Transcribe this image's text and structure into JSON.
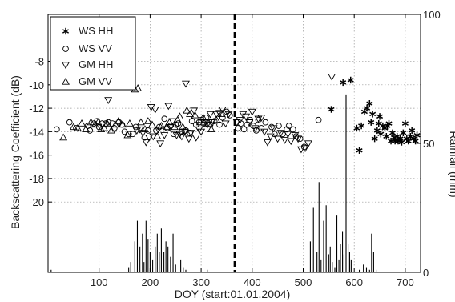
{
  "chart_data": {
    "type": "scatter",
    "xlabel": "DOY (start:01.01.2004)",
    "ylabel": "Backscattering Coefficient (dB)",
    "y2label": "Rainfall (mm)",
    "xlim": [
      0,
      730
    ],
    "ylim": [
      -26,
      -4
    ],
    "y2lim": [
      0,
      100
    ],
    "x_ticks": [
      100,
      200,
      300,
      400,
      500,
      600,
      700
    ],
    "y_ticks": [
      -20,
      -18,
      -16,
      -14,
      -12,
      -10,
      -8
    ],
    "y2_ticks": [
      0,
      50,
      100
    ],
    "grid": true,
    "legend_position": "top-left",
    "event_line_x": 366,
    "series": [
      {
        "name": "WS HH",
        "marker": "star",
        "points": [
          [
            555,
            -12.1
          ],
          [
            578,
            -9.8
          ],
          [
            593,
            -9.6
          ],
          [
            605,
            -13.7
          ],
          [
            610,
            -15.6
          ],
          [
            614,
            -13.5
          ],
          [
            620,
            -12.3
          ],
          [
            625,
            -12.0
          ],
          [
            630,
            -11.6
          ],
          [
            633,
            -13.2
          ],
          [
            636,
            -12.5
          ],
          [
            640,
            -14.6
          ],
          [
            645,
            -13.9
          ],
          [
            648,
            -13.3
          ],
          [
            650,
            -12.7
          ],
          [
            652,
            -14.2
          ],
          [
            656,
            -13.5
          ],
          [
            660,
            -13.7
          ],
          [
            663,
            -14.4
          ],
          [
            665,
            -13.5
          ],
          [
            668,
            -13.3
          ],
          [
            672,
            -14.8
          ],
          [
            675,
            -14.1
          ],
          [
            678,
            -14.5
          ],
          [
            680,
            -14.8
          ],
          [
            684,
            -14.4
          ],
          [
            686,
            -14.8
          ],
          [
            690,
            -14.6
          ],
          [
            693,
            -14.9
          ],
          [
            696,
            -14.1
          ],
          [
            700,
            -13.3
          ],
          [
            703,
            -14.6
          ],
          [
            706,
            -14.8
          ],
          [
            710,
            -14.4
          ],
          [
            713,
            -13.9
          ],
          [
            716,
            -14.6
          ],
          [
            720,
            -14.8
          ],
          [
            723,
            -14.3
          ]
        ]
      },
      {
        "name": "WS VV",
        "marker": "circle",
        "points": [
          [
            17,
            -13.8
          ],
          [
            42,
            -13.2
          ],
          [
            55,
            -13.7
          ],
          [
            78,
            -13.5
          ],
          [
            82,
            -13.9
          ],
          [
            90,
            -13.3
          ],
          [
            96,
            -13.1
          ],
          [
            100,
            -13.6
          ],
          [
            106,
            -13.3
          ],
          [
            113,
            -13.3
          ],
          [
            118,
            -13.2
          ],
          [
            126,
            -13.3
          ],
          [
            130,
            -13.7
          ],
          [
            139,
            -13.2
          ],
          [
            145,
            -13.4
          ],
          [
            150,
            -14.0
          ],
          [
            158,
            -14.2
          ],
          [
            166,
            -14.2
          ],
          [
            172,
            -13.6
          ],
          [
            189,
            -14.5
          ],
          [
            196,
            -13.9
          ],
          [
            212,
            -13.9
          ],
          [
            218,
            -13.6
          ],
          [
            228,
            -12.9
          ],
          [
            234,
            -13.7
          ],
          [
            240,
            -13.5
          ],
          [
            246,
            -14.2
          ],
          [
            250,
            -13.4
          ],
          [
            255,
            -13.3
          ],
          [
            262,
            -14.0
          ],
          [
            270,
            -13.9
          ],
          [
            278,
            -14.1
          ],
          [
            282,
            -13.1
          ],
          [
            290,
            -13.4
          ],
          [
            296,
            -13.2
          ],
          [
            300,
            -13.0
          ],
          [
            305,
            -13.3
          ],
          [
            310,
            -12.8
          ],
          [
            318,
            -13.4
          ],
          [
            326,
            -13.1
          ],
          [
            336,
            -13.4
          ],
          [
            342,
            -12.8
          ],
          [
            350,
            -12.3
          ],
          [
            356,
            -12.6
          ],
          [
            372,
            -13.7
          ],
          [
            378,
            -13.3
          ],
          [
            384,
            -13.8
          ],
          [
            390,
            -13.4
          ],
          [
            396,
            -13.0
          ],
          [
            402,
            -13.5
          ],
          [
            408,
            -13.9
          ],
          [
            412,
            -13.0
          ],
          [
            418,
            -13.7
          ],
          [
            426,
            -13.2
          ],
          [
            438,
            -13.6
          ],
          [
            444,
            -14.2
          ],
          [
            452,
            -13.5
          ],
          [
            460,
            -14.2
          ],
          [
            468,
            -13.8
          ],
          [
            472,
            -13.5
          ],
          [
            480,
            -13.8
          ],
          [
            486,
            -14.4
          ],
          [
            494,
            -14.6
          ],
          [
            502,
            -15.3
          ],
          [
            530,
            -13.0
          ]
        ]
      },
      {
        "name": "GM HH",
        "marker": "triangle-down",
        "points": [
          [
            118,
            -11.3
          ],
          [
            174,
            -13.9
          ],
          [
            180,
            -13.8
          ],
          [
            186,
            -14.1
          ],
          [
            192,
            -14.9
          ],
          [
            198,
            -14.5
          ],
          [
            202,
            -11.9
          ],
          [
            206,
            -14.4
          ],
          [
            210,
            -12.1
          ],
          [
            216,
            -13.8
          ],
          [
            220,
            -15.0
          ],
          [
            228,
            -14.3
          ],
          [
            236,
            -11.8
          ],
          [
            240,
            -13.6
          ],
          [
            244,
            -13.1
          ],
          [
            252,
            -14.3
          ],
          [
            258,
            -14.2
          ],
          [
            262,
            -14.4
          ],
          [
            268,
            -14.0
          ],
          [
            270,
            -9.9
          ],
          [
            276,
            -14.6
          ],
          [
            280,
            -14.1
          ],
          [
            286,
            -12.2
          ],
          [
            290,
            -14.5
          ],
          [
            296,
            -13.8
          ],
          [
            300,
            -14.0
          ],
          [
            306,
            -13.2
          ],
          [
            312,
            -13.4
          ],
          [
            318,
            -12.5
          ],
          [
            322,
            -13.2
          ],
          [
            330,
            -12.5
          ],
          [
            336,
            -12.4
          ],
          [
            342,
            -12.1
          ],
          [
            348,
            -13.3
          ],
          [
            354,
            -12.5
          ],
          [
            370,
            -13.2
          ],
          [
            376,
            -13.0
          ],
          [
            382,
            -12.5
          ],
          [
            388,
            -12.7
          ],
          [
            394,
            -13.2
          ],
          [
            400,
            -12.3
          ],
          [
            406,
            -13.7
          ],
          [
            412,
            -12.9
          ],
          [
            418,
            -12.8
          ],
          [
            424,
            -14.0
          ],
          [
            430,
            -14.9
          ],
          [
            436,
            -14.4
          ],
          [
            442,
            -13.7
          ],
          [
            450,
            -14.6
          ],
          [
            456,
            -14.1
          ],
          [
            464,
            -14.7
          ],
          [
            470,
            -14.2
          ],
          [
            476,
            -14.8
          ],
          [
            484,
            -14.3
          ],
          [
            490,
            -14.6
          ],
          [
            496,
            -15.5
          ],
          [
            504,
            -15.4
          ],
          [
            510,
            -15.0
          ],
          [
            556,
            -9.3
          ]
        ]
      },
      {
        "name": "GM VV",
        "marker": "triangle-up",
        "points": [
          [
            30,
            -14.5
          ],
          [
            50,
            -13.6
          ],
          [
            58,
            -13.7
          ],
          [
            66,
            -13.3
          ],
          [
            74,
            -13.8
          ],
          [
            84,
            -13.2
          ],
          [
            92,
            -13.4
          ],
          [
            98,
            -13.2
          ],
          [
            104,
            -13.8
          ],
          [
            110,
            -13.7
          ],
          [
            116,
            -13.3
          ],
          [
            124,
            -13.9
          ],
          [
            132,
            -13.4
          ],
          [
            138,
            -13.1
          ],
          [
            146,
            -13.4
          ],
          [
            156,
            -14.3
          ],
          [
            160,
            -13.3
          ],
          [
            170,
            -10.4
          ],
          [
            176,
            -10.3
          ],
          [
            182,
            -13.2
          ],
          [
            190,
            -13.8
          ],
          [
            196,
            -13.1
          ],
          [
            204,
            -13.4
          ],
          [
            214,
            -14.4
          ],
          [
            222,
            -13.5
          ],
          [
            232,
            -13.6
          ],
          [
            238,
            -13.2
          ],
          [
            248,
            -13.6
          ],
          [
            254,
            -13.0
          ],
          [
            258,
            -12.7
          ],
          [
            264,
            -13.6
          ],
          [
            272,
            -12.2
          ],
          [
            278,
            -12.5
          ],
          [
            288,
            -12.6
          ],
          [
            298,
            -13.2
          ],
          [
            304,
            -12.8
          ],
          [
            314,
            -13.3
          ],
          [
            320,
            -13.8
          ],
          [
            330,
            -13.0
          ],
          [
            340,
            -12.5
          ]
        ]
      }
    ],
    "rainfall": {
      "name": "Rainfall",
      "unit": "mm",
      "bars": [
        [
          6,
          1
        ],
        [
          158,
          2
        ],
        [
          162,
          4
        ],
        [
          170,
          12
        ],
        [
          175,
          20
        ],
        [
          180,
          10
        ],
        [
          185,
          15
        ],
        [
          188,
          4
        ],
        [
          192,
          20
        ],
        [
          196,
          13
        ],
        [
          200,
          8
        ],
        [
          205,
          5
        ],
        [
          210,
          10
        ],
        [
          214,
          15
        ],
        [
          218,
          8
        ],
        [
          222,
          17
        ],
        [
          227,
          8
        ],
        [
          231,
          12
        ],
        [
          235,
          10
        ],
        [
          240,
          6
        ],
        [
          245,
          15
        ],
        [
          250,
          3
        ],
        [
          260,
          5
        ],
        [
          265,
          2
        ],
        [
          270,
          1
        ],
        [
          312,
          1
        ],
        [
          514,
          12
        ],
        [
          520,
          25
        ],
        [
          527,
          8
        ],
        [
          531,
          35
        ],
        [
          535,
          5
        ],
        [
          540,
          20
        ],
        [
          545,
          26
        ],
        [
          550,
          7
        ],
        [
          553,
          10
        ],
        [
          557,
          4
        ],
        [
          562,
          2
        ],
        [
          566,
          22
        ],
        [
          570,
          5
        ],
        [
          573,
          11
        ],
        [
          577,
          16
        ],
        [
          580,
          7
        ],
        [
          584,
          69
        ],
        [
          588,
          11
        ],
        [
          591,
          8
        ],
        [
          594,
          5
        ],
        [
          610,
          1
        ],
        [
          618,
          3
        ],
        [
          624,
          2
        ],
        [
          630,
          1
        ],
        [
          634,
          15
        ],
        [
          638,
          8
        ],
        [
          643,
          1
        ]
      ]
    }
  }
}
